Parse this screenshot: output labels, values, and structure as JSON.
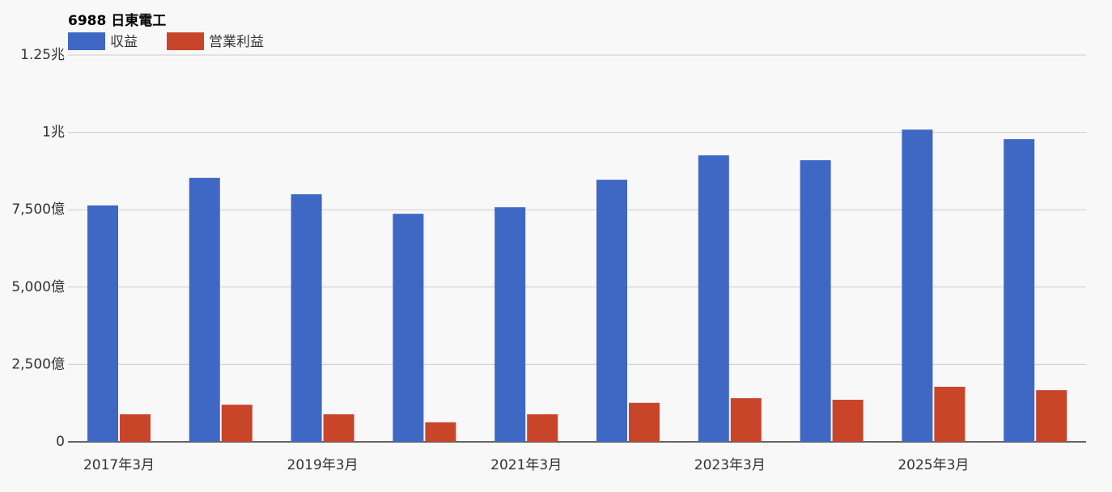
{
  "chart_data": {
    "type": "bar",
    "title": "6988 日東電工",
    "categories": [
      "2017年3月",
      null,
      "2019年3月",
      null,
      "2021年3月",
      null,
      "2023年3月",
      null,
      "2025年3月",
      null
    ],
    "series": [
      {
        "name": "収益",
        "color": "#3f68c5",
        "values": [
          7640,
          8530,
          8000,
          7370,
          7580,
          8470,
          9260,
          9100,
          10090,
          9780
        ]
      },
      {
        "name": "営業利益",
        "color": "#c9452a",
        "values": [
          890,
          1200,
          890,
          630,
          890,
          1260,
          1410,
          1360,
          1780,
          1670
        ]
      }
    ],
    "ylim": [
      0,
      12500
    ],
    "yticks": [
      0,
      {
        "value": 2500,
        "label": "2,500億"
      },
      {
        "value": 5000,
        "label": "5,000億"
      },
      {
        "value": 7500,
        "label": "7,500億"
      },
      {
        "value": 10000,
        "label": "1兆"
      },
      {
        "value": 12500,
        "label": "1.25兆"
      }
    ],
    "grid": true
  }
}
